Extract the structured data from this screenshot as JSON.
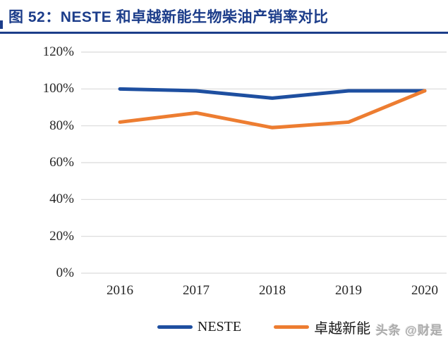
{
  "figure": {
    "title": "图 52：NESTE 和卓越新能生物柴油产销率对比",
    "title_color": "#1C3D8A"
  },
  "watermark": "头条 @财是",
  "chart_data": {
    "type": "line",
    "title": "NESTE 和卓越新能生物柴油产销率对比",
    "categories": [
      "2016",
      "2017",
      "2018",
      "2019",
      "2020"
    ],
    "series": [
      {
        "name": "NESTE",
        "values": [
          100,
          99,
          95,
          99,
          99
        ],
        "color": "#1E4FA0"
      },
      {
        "name": "卓越新能",
        "values": [
          82,
          87,
          79,
          82,
          99
        ],
        "color": "#ED7D31"
      }
    ],
    "xlabel": "",
    "ylabel": "",
    "ylim": [
      0,
      120
    ],
    "yticks": [
      "0%",
      "20%",
      "40%",
      "60%",
      "80%",
      "100%",
      "120%"
    ],
    "ytick_values": [
      0,
      20,
      40,
      60,
      80,
      100,
      120
    ],
    "grid": true,
    "gridline_color": "#D9D9D9",
    "legend_position": "bottom"
  }
}
